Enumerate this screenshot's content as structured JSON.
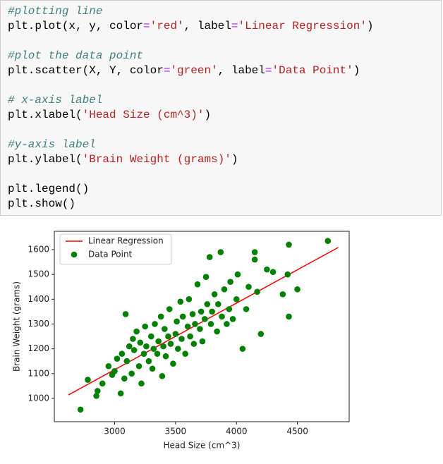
{
  "code": {
    "lines": [
      [
        {
          "t": "#plotting line",
          "s": "comment"
        }
      ],
      [
        {
          "t": "plt.plot(x, y, color",
          "s": "code"
        },
        {
          "t": "=",
          "s": "op"
        },
        {
          "t": "'red'",
          "s": "string"
        },
        {
          "t": ", label",
          "s": "code"
        },
        {
          "t": "=",
          "s": "op"
        },
        {
          "t": "'Linear Regression'",
          "s": "string"
        },
        {
          "t": ")",
          "s": "code"
        }
      ],
      [],
      [
        {
          "t": "#plot the data point",
          "s": "comment"
        }
      ],
      [
        {
          "t": "plt.scatter(X, Y, color",
          "s": "code"
        },
        {
          "t": "=",
          "s": "op"
        },
        {
          "t": "'green'",
          "s": "string"
        },
        {
          "t": ", label",
          "s": "code"
        },
        {
          "t": "=",
          "s": "op"
        },
        {
          "t": "'Data Point'",
          "s": "string"
        },
        {
          "t": ")",
          "s": "code"
        }
      ],
      [],
      [
        {
          "t": "# x-axis label",
          "s": "comment"
        }
      ],
      [
        {
          "t": "plt.xlabel(",
          "s": "code"
        },
        {
          "t": "'Head Size (cm^3)'",
          "s": "string"
        },
        {
          "t": ")",
          "s": "code"
        }
      ],
      [],
      [
        {
          "t": "#y-axis label",
          "s": "comment"
        }
      ],
      [
        {
          "t": "plt.ylabel(",
          "s": "code"
        },
        {
          "t": "'Brain Weight (grams)'",
          "s": "string"
        },
        {
          "t": ")",
          "s": "code"
        }
      ],
      [],
      [
        {
          "t": "plt.legend()",
          "s": "code"
        }
      ],
      [
        {
          "t": "plt.show()",
          "s": "code"
        }
      ]
    ]
  },
  "chart_data": {
    "type": "scatter",
    "x_label": "Head Size (cm^3)",
    "y_label": "Brain Weight (grams)",
    "xlim": [
      2505,
      4925
    ],
    "ylim": [
      906,
      1674
    ],
    "xticks": [
      3000,
      3500,
      4000,
      4500
    ],
    "yticks": [
      1000,
      1100,
      1200,
      1300,
      1400,
      1500,
      1600
    ],
    "legend": "upper left",
    "series": [
      {
        "name": "Linear Regression",
        "color": "red",
        "kind": "line",
        "x": [
          2621,
          4836
        ],
        "values": [
          1014,
          1609
        ]
      },
      {
        "name": "Data Point",
        "color": "green",
        "kind": "scatter",
        "x": [
          2720,
          2780,
          2850,
          2860,
          2900,
          2950,
          2980,
          3000,
          3020,
          3050,
          3060,
          3080,
          3090,
          3100,
          3120,
          3140,
          3150,
          3160,
          3180,
          3200,
          3210,
          3220,
          3240,
          3250,
          3260,
          3280,
          3300,
          3310,
          3320,
          3330,
          3350,
          3360,
          3380,
          3390,
          3400,
          3410,
          3420,
          3440,
          3450,
          3460,
          3480,
          3500,
          3510,
          3520,
          3540,
          3550,
          3560,
          3580,
          3600,
          3610,
          3620,
          3640,
          3650,
          3660,
          3680,
          3700,
          3710,
          3720,
          3740,
          3750,
          3760,
          3780,
          3790,
          3800,
          3820,
          3840,
          3850,
          3870,
          3880,
          3900,
          3920,
          3940,
          3950,
          3970,
          4000,
          4010,
          4050,
          4080,
          4100,
          4150,
          4150,
          4170,
          4200,
          4250,
          4300,
          4380,
          4420,
          4430,
          4430,
          4500,
          4750
        ],
        "values": [
          955,
          1075,
          1010,
          1030,
          1060,
          1130,
          1095,
          1110,
          1160,
          1020,
          1180,
          1080,
          1340,
          1150,
          1210,
          1100,
          1240,
          1195,
          1270,
          1130,
          1225,
          1060,
          1180,
          1290,
          1210,
          1150,
          1250,
          1120,
          1200,
          1300,
          1180,
          1230,
          1330,
          1090,
          1210,
          1280,
          1170,
          1250,
          1360,
          1220,
          1140,
          1260,
          1310,
          1200,
          1390,
          1240,
          1330,
          1180,
          1290,
          1400,
          1250,
          1340,
          1220,
          1300,
          1460,
          1280,
          1350,
          1230,
          1320,
          1490,
          1380,
          1570,
          1300,
          1350,
          1420,
          1270,
          1380,
          1590,
          1330,
          1440,
          1300,
          1360,
          1470,
          1320,
          1400,
          1500,
          1200,
          1360,
          1450,
          1590,
          1560,
          1430,
          1260,
          1520,
          1510,
          1420,
          1500,
          1620,
          1330,
          1440,
          1635
        ]
      }
    ]
  }
}
